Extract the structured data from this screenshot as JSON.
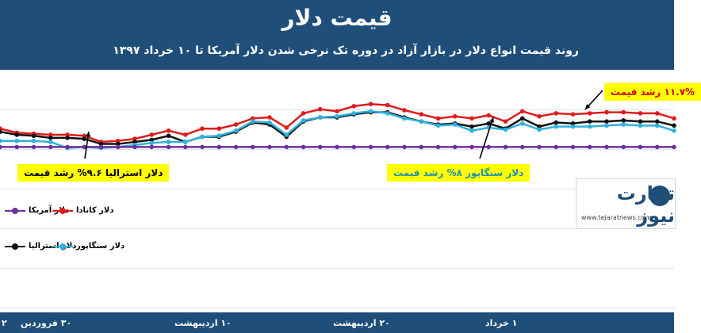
{
  "header": {
    "title": "قیمت دلار",
    "subtitle": "روند قیمت انواع دلار در بازار آزاد در دوره تک نرخی شدن دلار آمریکا تا ۱۰ خرداد ۱۳۹۷"
  },
  "callouts": {
    "canada": "۱۱.۷% رشد قیمت",
    "australia": "دلار استرالیا ۹.۶% رشد قیمت",
    "singapore": "دلار سنگاپور ۸% رشد قیمت"
  },
  "legend": {
    "usd": "دلار آمریکا",
    "cad": "دلار کانادا",
    "aud": "دلار استرالیا",
    "sgd": "دلار سنگاپور"
  },
  "logo": {
    "word": "تجارت نیوز",
    "url": "www.tejaratnews.com"
  },
  "colors": {
    "header": "#1f4e79",
    "usd": "#7030a0",
    "cad": "#e01b1b",
    "aud": "#111111",
    "sgd": "#2fb1dd",
    "callout": "#ffff00"
  },
  "chart_data": {
    "type": "line",
    "title": "قیمت دلار",
    "subtitle": "روند قیمت انواع دلار در بازار آزاد در دوره تک نرخی شدن دلار آمریکا تا ۱۰ خرداد ۱۳۹۷",
    "x_tick_labels": [
      "۲",
      "۳۰ فروردین",
      "۱۰ اردیبهشت",
      "۲۰ اردیبهشت",
      "۱ خرداد"
    ],
    "grid": true,
    "ylim": [
      0,
      100
    ],
    "series": [
      {
        "name": "دلار کانادا",
        "color": "#e01b1b",
        "values": [
          60,
          56,
          55,
          54,
          54,
          53,
          47,
          48,
          50,
          54,
          58,
          54,
          60,
          60,
          64,
          70,
          71,
          61,
          75,
          79,
          77,
          82,
          84,
          83,
          78,
          74,
          70,
          72,
          70,
          73,
          67,
          77,
          72,
          75,
          74,
          75,
          76,
          76,
          75,
          75,
          70
        ]
      },
      {
        "name": "دلار استرالیا",
        "color": "#111111",
        "values": [
          57,
          54,
          53,
          51,
          51,
          50,
          45,
          45,
          47,
          49,
          53,
          47,
          52,
          52,
          57,
          66,
          64,
          52,
          67,
          71,
          71,
          74,
          76,
          76,
          71,
          67,
          64,
          65,
          62,
          65,
          60,
          70,
          62,
          66,
          65,
          67,
          67,
          68,
          67,
          67,
          63
        ]
      },
      {
        "name": "دلار سنگاپور",
        "color": "#2fb1dd",
        "values": [
          48,
          48,
          48,
          47,
          41,
          42,
          41,
          42,
          44,
          46,
          47,
          47,
          52,
          53,
          58,
          67,
          66,
          54,
          68,
          71,
          72,
          75,
          77,
          75,
          70,
          67,
          63,
          64,
          58,
          61,
          59,
          65,
          59,
          62,
          62,
          62,
          63,
          64,
          63,
          63,
          58
        ]
      },
      {
        "name": "دلار آمریکا",
        "color": "#7030a0",
        "values": [
          42,
          42,
          42,
          42,
          42,
          42,
          42,
          42,
          42,
          42,
          42,
          42,
          42,
          42,
          42,
          42,
          42,
          42,
          42,
          42,
          42,
          42,
          42,
          42,
          42,
          42,
          42,
          42,
          42,
          42,
          42,
          42,
          42,
          42,
          42,
          42,
          42,
          42,
          42,
          42,
          42
        ]
      }
    ]
  }
}
